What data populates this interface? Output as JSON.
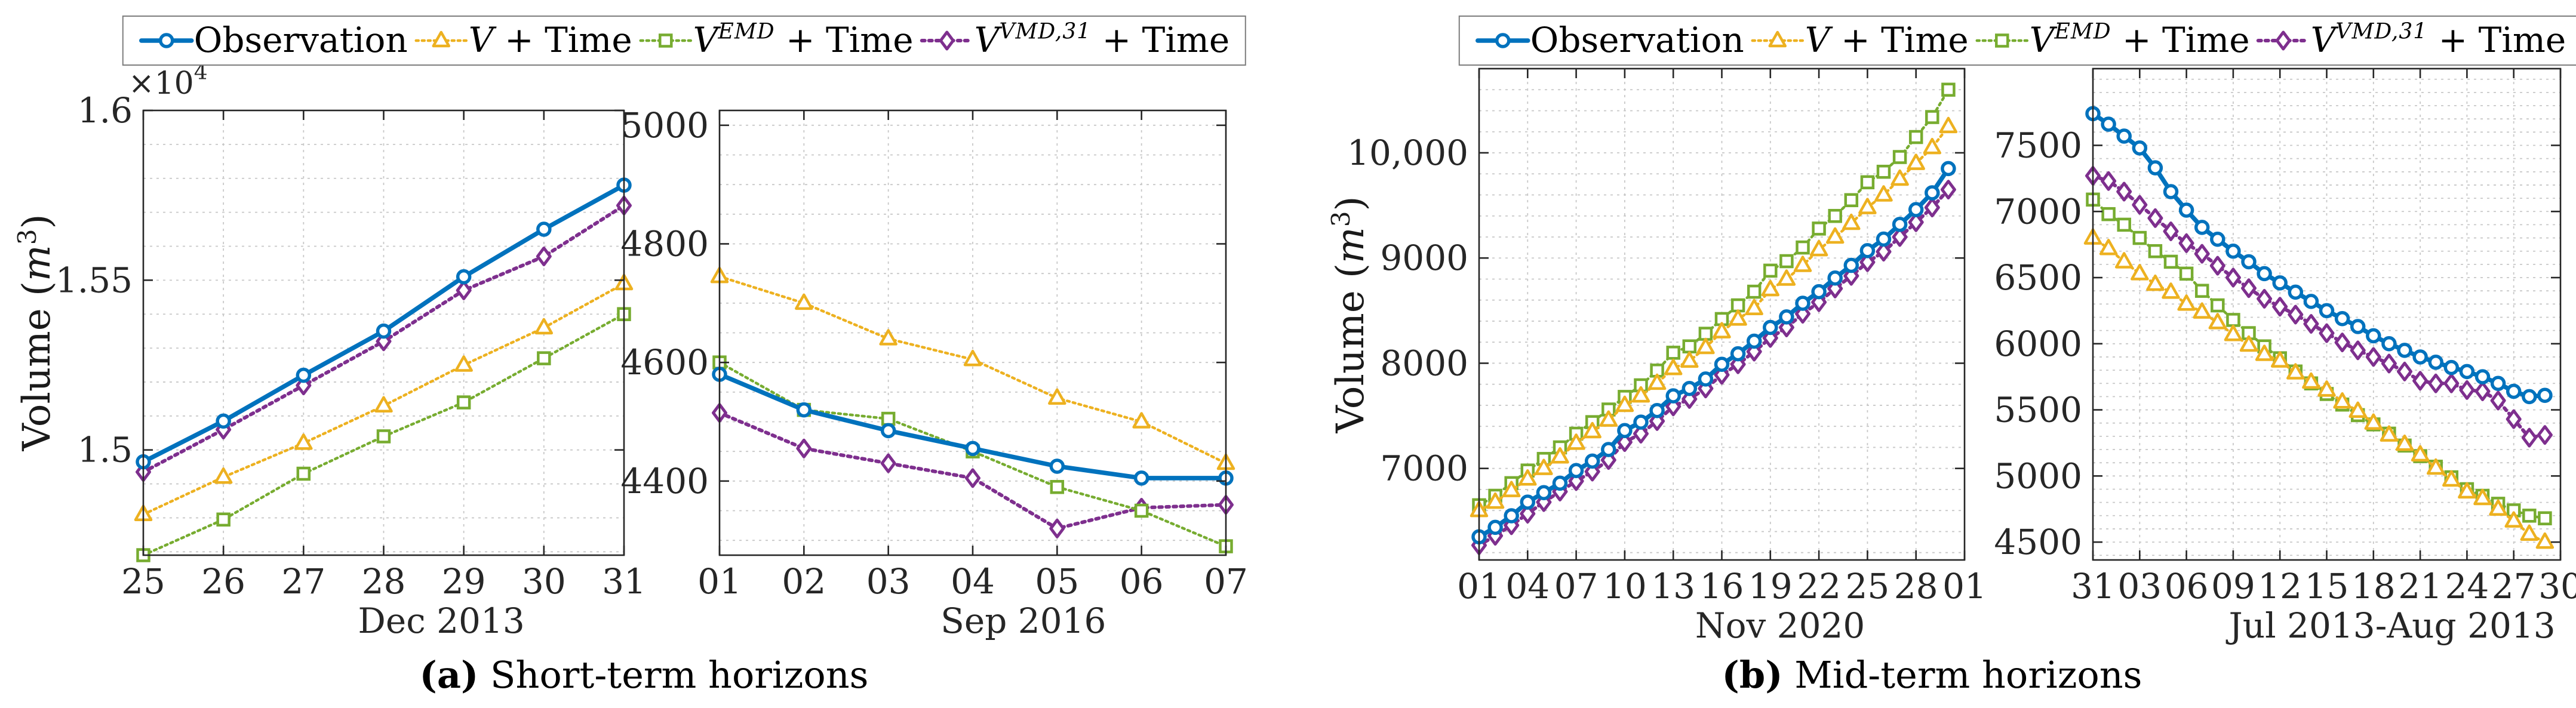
{
  "figure": {
    "ylabel": {
      "pre": "Volume (",
      "var": "m",
      "sup": "3",
      "post": ")"
    },
    "panels": [
      {
        "caption_tag": "(a)",
        "caption_text": " Short-term horizons"
      },
      {
        "caption_tag": "(b)",
        "caption_text": " Mid-term horizons"
      }
    ],
    "legend": [
      {
        "key": "observation",
        "label_plain": "Observation",
        "label": {
          "pre": "Observation",
          "var": "",
          "sup": "",
          "post": ""
        },
        "color": "#0072BD",
        "marker": "circle",
        "line": "solid"
      },
      {
        "key": "v_time",
        "label_plain": "V + Time",
        "label": {
          "pre": "",
          "var": "V",
          "sup": "",
          "post": " + Time"
        },
        "color": "#EDB120",
        "marker": "triangle",
        "line": "dotted"
      },
      {
        "key": "v_emd_time",
        "label_plain": "V^EMD + Time",
        "label": {
          "pre": "",
          "var": "V",
          "sup": "EMD",
          "post": " + Time"
        },
        "color": "#77AC30",
        "marker": "square",
        "line": "dotted"
      },
      {
        "key": "v_vmd_time",
        "label_plain": "V^VMD,31 + Time",
        "label": {
          "pre": "",
          "var": "V",
          "sup": "VMD,31",
          "post": " + Time"
        },
        "color": "#7E2F8E",
        "marker": "diamond",
        "line": "dotted"
      }
    ],
    "colors": {
      "axis": "#262626",
      "grid": "#c8c8c8",
      "text": "#262626"
    }
  },
  "chart_data": [
    {
      "id": "a1",
      "type": "line",
      "panel": "a",
      "title": "",
      "xlabel": "Dec 2013",
      "ylabel": "Volume (m^3)",
      "xlim": [
        25,
        31
      ],
      "ylim": [
        14690,
        16000
      ],
      "xticks": [
        25,
        26,
        27,
        28,
        29,
        30,
        31
      ],
      "xtick_labels": [
        "25",
        "26",
        "27",
        "28",
        "29",
        "30",
        "31"
      ],
      "yticks": [
        15000,
        15500,
        16000
      ],
      "ytick_labels": [
        "1.5",
        "1.55",
        "1.6"
      ],
      "y_multiplier": {
        "base": "×10",
        "exp": "4"
      },
      "minor_y_step": 100,
      "grid": true,
      "legend_position": "top-outside",
      "x": [
        25,
        26,
        27,
        28,
        29,
        30,
        31
      ],
      "series": [
        {
          "key": "observation",
          "name": "Observation",
          "values": [
            14965,
            15085,
            15220,
            15350,
            15510,
            15650,
            15780
          ]
        },
        {
          "key": "v_time",
          "name": "V + Time",
          "values": [
            14810,
            14920,
            15020,
            15130,
            15250,
            15360,
            15490
          ]
        },
        {
          "key": "v_emd_time",
          "name": "V^EMD + Time",
          "values": [
            14690,
            14795,
            14930,
            15040,
            15140,
            15270,
            15400
          ]
        },
        {
          "key": "v_vmd_time",
          "name": "V^VMD,31 + Time",
          "values": [
            14935,
            15060,
            15190,
            15320,
            15470,
            15570,
            15720
          ]
        }
      ]
    },
    {
      "id": "a2",
      "type": "line",
      "panel": "a",
      "title": "",
      "xlabel": "Sep 2016",
      "ylabel": "",
      "xlim": [
        1,
        7
      ],
      "ylim": [
        4275,
        5025
      ],
      "xticks": [
        1,
        2,
        3,
        4,
        5,
        6,
        7
      ],
      "xtick_labels": [
        "01",
        "02",
        "03",
        "04",
        "05",
        "06",
        "07"
      ],
      "yticks": [
        4400,
        4600,
        4800,
        5000
      ],
      "ytick_labels": [
        "4400",
        "4600",
        "4800",
        "5000"
      ],
      "y_multiplier": null,
      "minor_y_step": 50,
      "grid": true,
      "legend_position": "top-outside",
      "x": [
        1,
        2,
        3,
        4,
        5,
        6,
        7
      ],
      "series": [
        {
          "key": "observation",
          "name": "Observation",
          "values": [
            4580,
            4520,
            4485,
            4455,
            4425,
            4405,
            4405
          ]
        },
        {
          "key": "v_time",
          "name": "V + Time",
          "values": [
            4745,
            4700,
            4640,
            4605,
            4540,
            4500,
            4430
          ]
        },
        {
          "key": "v_emd_time",
          "name": "V^EMD + Time",
          "values": [
            4600,
            4520,
            4505,
            4450,
            4390,
            4350,
            4290
          ]
        },
        {
          "key": "v_vmd_time",
          "name": "V^VMD,31 + Time",
          "values": [
            4515,
            4455,
            4430,
            4405,
            4320,
            4355,
            4360
          ]
        }
      ]
    },
    {
      "id": "b1",
      "type": "line",
      "panel": "b",
      "title": "",
      "xlabel": "Nov 2020",
      "ylabel": "Volume (m^3)",
      "xlim": [
        1,
        31
      ],
      "ylim": [
        6130,
        10800
      ],
      "xticks": [
        1,
        4,
        7,
        10,
        13,
        16,
        19,
        22,
        25,
        28,
        31
      ],
      "xtick_labels": [
        "01",
        "04",
        "07",
        "10",
        "13",
        "16",
        "19",
        "22",
        "25",
        "28",
        "01"
      ],
      "yticks": [
        7000,
        8000,
        9000,
        10000
      ],
      "ytick_labels": [
        "7000",
        "8000",
        "9000",
        "10,000"
      ],
      "y_multiplier": null,
      "minor_y_step": 200,
      "grid": true,
      "legend_position": "top-outside",
      "x": [
        1,
        2,
        3,
        4,
        5,
        6,
        7,
        8,
        9,
        10,
        11,
        12,
        13,
        14,
        15,
        16,
        17,
        18,
        19,
        20,
        21,
        22,
        23,
        24,
        25,
        26,
        27,
        28,
        29,
        30
      ],
      "series": [
        {
          "key": "observation",
          "name": "Observation",
          "values": [
            6350,
            6440,
            6550,
            6680,
            6770,
            6860,
            6980,
            7070,
            7180,
            7360,
            7440,
            7550,
            7690,
            7760,
            7850,
            7990,
            8090,
            8210,
            8340,
            8440,
            8570,
            8680,
            8810,
            8930,
            9070,
            9180,
            9320,
            9460,
            9620,
            9850
          ]
        },
        {
          "key": "v_time",
          "name": "V + Time",
          "values": [
            6600,
            6680,
            6790,
            6900,
            7000,
            7110,
            7240,
            7350,
            7460,
            7600,
            7690,
            7810,
            7950,
            8020,
            8150,
            8300,
            8420,
            8520,
            8700,
            8800,
            8930,
            9080,
            9200,
            9330,
            9480,
            9600,
            9750,
            9900,
            10050,
            10250
          ]
        },
        {
          "key": "v_emd_time",
          "name": "V^EMD + Time",
          "values": [
            6650,
            6740,
            6860,
            6980,
            7090,
            7200,
            7330,
            7440,
            7560,
            7680,
            7790,
            7930,
            8100,
            8160,
            8280,
            8420,
            8550,
            8680,
            8880,
            8970,
            9100,
            9280,
            9400,
            9550,
            9720,
            9820,
            9960,
            10150,
            10340,
            10600
          ]
        },
        {
          "key": "v_vmd_time",
          "name": "V^VMD,31 + Time",
          "values": [
            6270,
            6360,
            6460,
            6570,
            6680,
            6780,
            6880,
            6970,
            7080,
            7250,
            7330,
            7450,
            7590,
            7660,
            7760,
            7890,
            7990,
            8110,
            8240,
            8340,
            8470,
            8580,
            8710,
            8830,
            8960,
            9060,
            9200,
            9340,
            9480,
            9650
          ]
        }
      ]
    },
    {
      "id": "b2",
      "type": "line",
      "panel": "b",
      "title": "",
      "xlabel": "Jul 2013-Aug 2013",
      "ylabel": "",
      "xlim": [
        0,
        30
      ],
      "ylim": [
        4365,
        8080
      ],
      "xticks": [
        0,
        3,
        6,
        9,
        12,
        15,
        18,
        21,
        24,
        27,
        30
      ],
      "xtick_labels": [
        "31",
        "03",
        "06",
        "09",
        "12",
        "15",
        "18",
        "21",
        "24",
        "27",
        "30"
      ],
      "yticks": [
        4500,
        5000,
        5500,
        6000,
        6500,
        7000,
        7500
      ],
      "ytick_labels": [
        "4500",
        "5000",
        "5500",
        "6000",
        "6500",
        "7000",
        "7500"
      ],
      "y_multiplier": null,
      "minor_y_step": 100,
      "grid": true,
      "legend_position": "top-outside",
      "x": [
        0,
        1,
        2,
        3,
        4,
        5,
        6,
        7,
        8,
        9,
        10,
        11,
        12,
        13,
        14,
        15,
        16,
        17,
        18,
        19,
        20,
        21,
        22,
        23,
        24,
        25,
        26,
        27,
        28,
        29
      ],
      "series": [
        {
          "key": "observation",
          "name": "Observation",
          "values": [
            7740,
            7660,
            7570,
            7480,
            7330,
            7150,
            7010,
            6880,
            6790,
            6700,
            6620,
            6530,
            6460,
            6390,
            6320,
            6250,
            6190,
            6130,
            6060,
            6000,
            5950,
            5900,
            5860,
            5820,
            5790,
            5750,
            5700,
            5640,
            5600,
            5610
          ]
        },
        {
          "key": "v_time",
          "name": "V + Time",
          "values": [
            6800,
            6720,
            6620,
            6530,
            6450,
            6390,
            6300,
            6240,
            6160,
            6070,
            5990,
            5920,
            5870,
            5780,
            5710,
            5650,
            5560,
            5490,
            5400,
            5310,
            5240,
            5160,
            5060,
            4970,
            4880,
            4830,
            4750,
            4660,
            4560,
            4500
          ]
        },
        {
          "key": "v_emd_time",
          "name": "V^EMD + Time",
          "values": [
            7090,
            6980,
            6900,
            6800,
            6700,
            6620,
            6530,
            6400,
            6290,
            6180,
            6080,
            5980,
            5890,
            5790,
            5700,
            5620,
            5540,
            5460,
            5390,
            5320,
            5230,
            5150,
            5070,
            4990,
            4900,
            4850,
            4790,
            4740,
            4700,
            4680
          ]
        },
        {
          "key": "v_vmd_time",
          "name": "V^VMD,31 + Time",
          "values": [
            7270,
            7230,
            7150,
            7050,
            6950,
            6850,
            6760,
            6680,
            6590,
            6500,
            6420,
            6340,
            6280,
            6220,
            6150,
            6080,
            6010,
            5950,
            5900,
            5850,
            5790,
            5720,
            5700,
            5700,
            5650,
            5640,
            5570,
            5430,
            5290,
            5310
          ]
        }
      ]
    }
  ]
}
